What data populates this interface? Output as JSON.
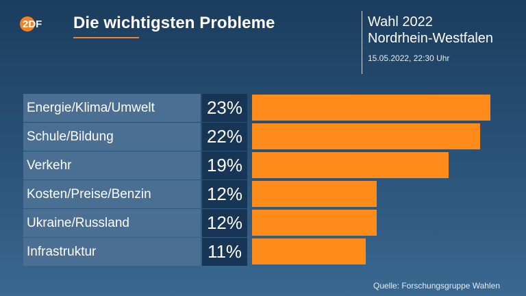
{
  "header": {
    "logo_text": "2DF",
    "title": "Die wichtigsten Probleme",
    "election_line1": "Wahl 2022",
    "election_line2": "Nordrhein-Westfalen",
    "timestamp": "15.05.2022, 22:30 Uhr"
  },
  "colors": {
    "bar": "#ff8c1a",
    "accent": "#f58220",
    "category_bg": "#4b6f93",
    "value_bg": "#173656"
  },
  "chart_data": {
    "type": "bar",
    "orientation": "horizontal",
    "title": "Die wichtigsten Probleme",
    "categories": [
      "Energie/Klima/Umwelt",
      "Schule/Bildung",
      "Verkehr",
      "Kosten/Preise/Benzin",
      "Ukraine/Russland",
      "Infrastruktur"
    ],
    "values": [
      23,
      22,
      19,
      12,
      12,
      11
    ],
    "value_labels": [
      "23%",
      "22%",
      "19%",
      "12%",
      "12%",
      "11%"
    ],
    "unit": "%",
    "xlim": [
      0,
      23
    ],
    "grid": false,
    "legend": "none"
  },
  "footer": {
    "source": "Quelle: Forschungsgruppe Wahlen"
  }
}
